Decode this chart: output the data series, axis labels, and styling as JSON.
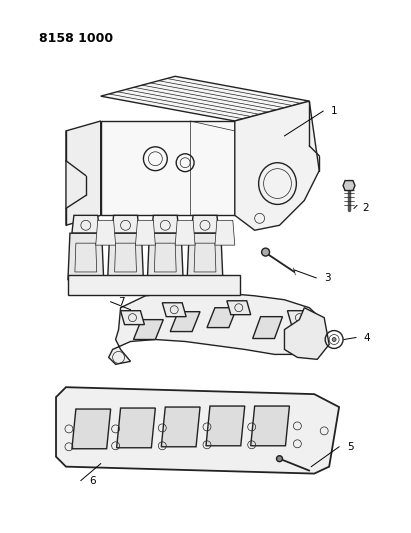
{
  "title_code": "8158 1000",
  "background_color": "#ffffff",
  "line_color": "#222222",
  "text_color": "#000000",
  "figsize": [
    4.11,
    5.33
  ],
  "dpi": 100,
  "lw_main": 1.0,
  "lw_thin": 0.5,
  "lw_thick": 1.3
}
